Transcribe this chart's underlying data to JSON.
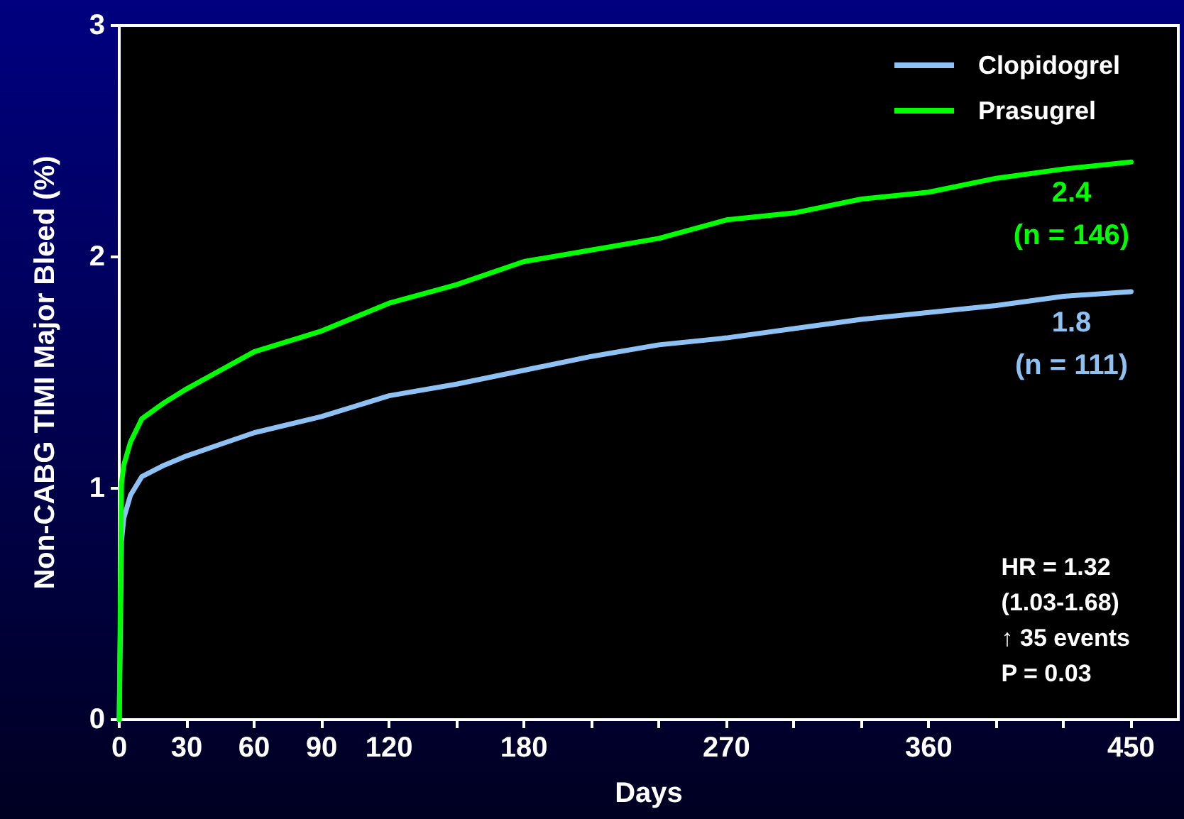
{
  "chart_data": {
    "type": "line",
    "xlabel": "Days",
    "ylabel": "Non-CABG TIMI Major Bleed (%)",
    "xlim": [
      0,
      471
    ],
    "xticks": [
      0,
      30,
      60,
      90,
      120,
      {
        "value": 150,
        "label": null
      },
      180,
      {
        "value": 210,
        "label": null
      },
      {
        "value": 240,
        "label": null
      },
      270,
      {
        "value": 300,
        "label": null
      },
      {
        "value": 330,
        "label": null
      },
      360,
      {
        "value": 390,
        "label": null
      },
      {
        "value": 420,
        "label": null
      },
      450
    ],
    "ylim": [
      0,
      3
    ],
    "yticks": [
      0,
      1,
      2,
      3
    ],
    "series": [
      {
        "name": "Clopidogrel",
        "color": "#8ec2f5",
        "x": [
          0,
          1,
          2,
          5,
          10,
          20,
          30,
          45,
          60,
          90,
          120,
          150,
          180,
          210,
          240,
          270,
          300,
          330,
          360,
          390,
          420,
          450
        ],
        "values": [
          0,
          0.77,
          0.87,
          0.97,
          1.05,
          1.1,
          1.14,
          1.19,
          1.24,
          1.31,
          1.4,
          1.45,
          1.51,
          1.57,
          1.62,
          1.65,
          1.69,
          1.73,
          1.76,
          1.79,
          1.83,
          1.85
        ]
      },
      {
        "name": "Prasugrel",
        "color": "#00ff00",
        "x": [
          0,
          1,
          2,
          5,
          10,
          20,
          30,
          45,
          60,
          90,
          120,
          150,
          180,
          210,
          240,
          270,
          300,
          330,
          360,
          390,
          420,
          450
        ],
        "values": [
          0,
          1.02,
          1.1,
          1.2,
          1.3,
          1.37,
          1.43,
          1.51,
          1.59,
          1.68,
          1.8,
          1.88,
          1.98,
          2.03,
          2.08,
          2.16,
          2.19,
          2.25,
          2.28,
          2.34,
          2.38,
          2.41
        ]
      }
    ],
    "annotations": [
      {
        "text": "2.4\n(n = 146)",
        "x": 450,
        "y": 2.41
      },
      {
        "text": "1.8\n(n = 111)",
        "x": 450,
        "y": 1.85
      },
      "HR = 1.32\n(1.03-1.68)\n↑ 35 events\nP = 0.03"
    ],
    "legend": "top right",
    "grid": false,
    "marker": "none",
    "line_style": "solid"
  }
}
